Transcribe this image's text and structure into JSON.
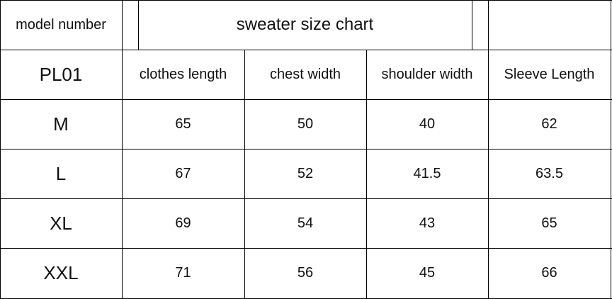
{
  "title": "sweater size chart",
  "model_label": "model number",
  "model": "PL01",
  "headers": [
    "clothes length",
    "chest width",
    "shoulder width",
    "Sleeve Length"
  ],
  "rows": [
    {
      "size": "M",
      "values": [
        "65",
        "50",
        "40",
        "62"
      ]
    },
    {
      "size": "L",
      "values": [
        "67",
        "52",
        "41.5",
        "63.5"
      ]
    },
    {
      "size": "XL",
      "values": [
        "69",
        "54",
        "43",
        "65"
      ]
    },
    {
      "size": "XXL",
      "values": [
        "71",
        "56",
        "45",
        "66"
      ]
    }
  ]
}
